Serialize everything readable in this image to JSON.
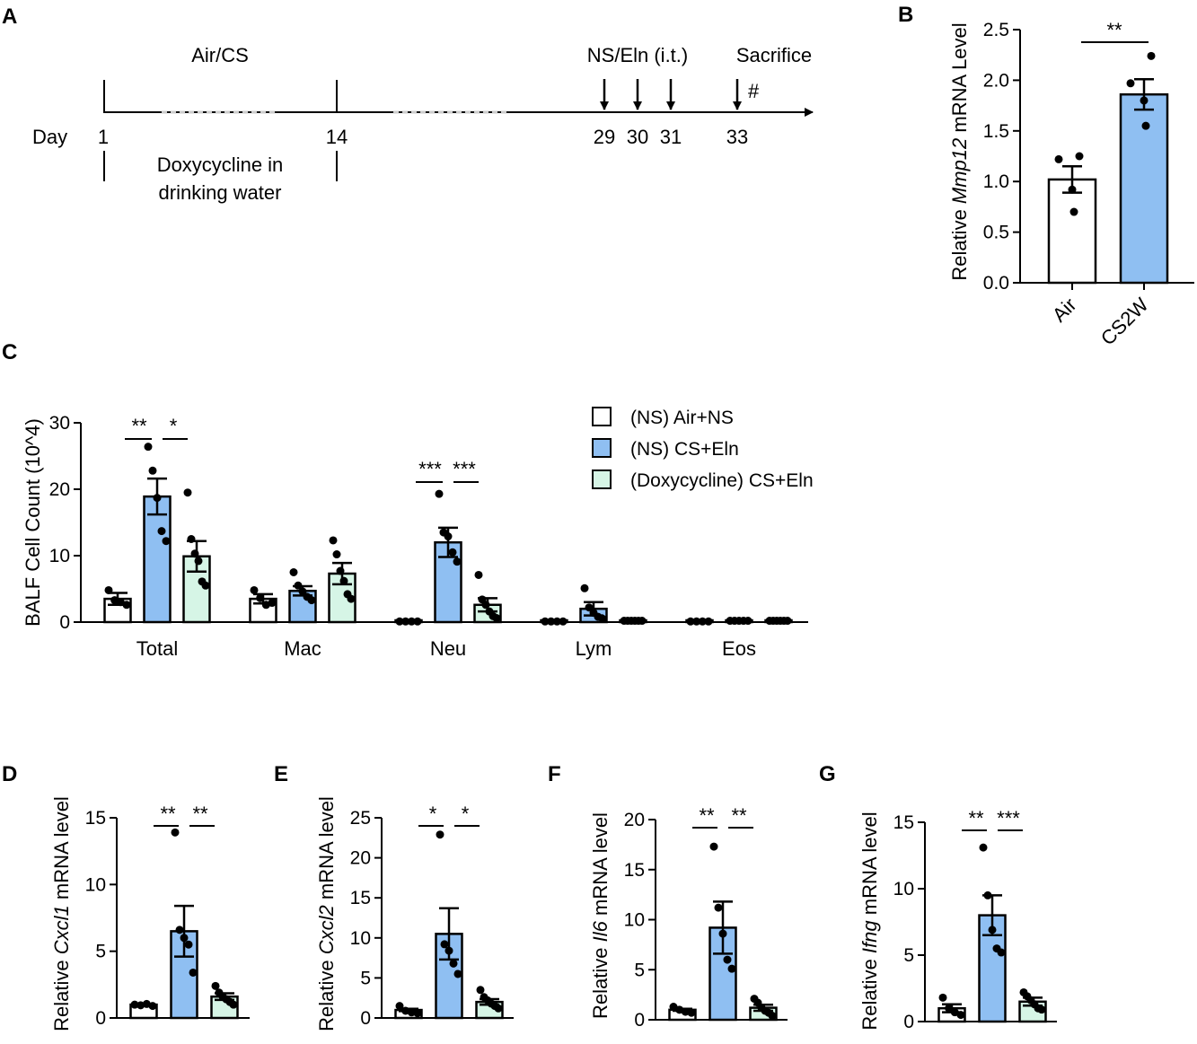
{
  "colors": {
    "air": "#ffffff",
    "cs": "#8fbff2",
    "doxy": "#d6f5e6",
    "stroke": "#000000"
  },
  "panel_a": {
    "label": "A",
    "day_label": "Day",
    "top_labels": [
      {
        "text": "Air/CS",
        "day": 7
      },
      {
        "text": "NS/Eln (i.t.)",
        "day": 30
      },
      {
        "text": "Sacrifice",
        "day": 36.5
      }
    ],
    "days": [
      "1",
      "14",
      "29",
      "30",
      "31",
      "33"
    ],
    "treatment_lines": [
      "Doxycycline in",
      "drinking water"
    ],
    "hash": "#"
  },
  "chart_data": [
    {
      "panel": "B",
      "type": "bar",
      "ylabel_parts": [
        "Relative ",
        "Mmp12",
        " mRNA Level"
      ],
      "categories": [
        "Air",
        "CS2W"
      ],
      "values": [
        1.02,
        1.86
      ],
      "errors": [
        0.13,
        0.15
      ],
      "points": [
        [
          1.25,
          1.22,
          0.92,
          0.7
        ],
        [
          2.24,
          1.97,
          1.8,
          1.55
        ]
      ],
      "ylim": [
        0,
        2.5
      ],
      "yticks": [
        "0.0",
        "0.5",
        "1.0",
        "1.5",
        "2.0",
        "2.5"
      ],
      "significance": [
        {
          "text": "**",
          "from": 0,
          "to": 1
        }
      ]
    },
    {
      "panel": "C",
      "type": "bar",
      "ylabel": "BALF Cell Count (10^4)",
      "categories": [
        "Total",
        "Mac",
        "Neu",
        "Lym",
        "Eos"
      ],
      "series": [
        {
          "name": "(NS) Air+NS",
          "values": [
            3.5,
            3.5,
            0.1,
            0.1,
            0.1
          ],
          "errors": [
            0.9,
            0.7,
            0,
            0,
            0
          ],
          "points": [
            [
              4.8,
              3.3,
              3.0,
              2.6
            ],
            [
              4.8,
              3.6,
              2.6,
              2.9
            ],
            [
              0.1,
              0.1,
              0.1,
              0.1
            ],
            [
              0.1,
              0.1,
              0.1,
              0.1
            ],
            [
              0.1,
              0.1,
              0.1,
              0.1
            ]
          ]
        },
        {
          "name": "(NS) CS+Eln",
          "values": [
            18.9,
            4.7,
            12.0,
            2.0,
            0.2
          ],
          "errors": [
            2.7,
            0.7,
            2.2,
            1.0,
            0
          ],
          "points": [
            [
              26.4,
              22.8,
              18.7,
              13.7,
              12.2
            ],
            [
              7.5,
              5.5,
              4.6,
              3.8,
              3.3
            ],
            [
              19.3,
              13.5,
              12.9,
              10.5,
              9.1
            ],
            [
              5.1,
              2.2,
              1.4,
              0.8,
              0.5
            ],
            [
              0.2,
              0.2,
              0.2,
              0.2,
              0.2
            ]
          ]
        },
        {
          "name": "(Doxycycline) CS+Eln",
          "values": [
            9.9,
            7.3,
            2.6,
            0.2,
            0.2
          ],
          "errors": [
            2.3,
            1.6,
            1.0,
            0,
            0
          ],
          "points": [
            [
              19.5,
              12.5,
              10.3,
              9.2,
              6.1,
              5.5
            ],
            [
              12.3,
              10.2,
              7.7,
              6.2,
              4.2,
              3.5
            ],
            [
              7.1,
              3.4,
              2.6,
              1.6,
              0.9,
              0.6
            ],
            [
              0.2,
              0.2,
              0.2,
              0.2,
              0.2,
              0.2
            ],
            [
              0.2,
              0.2,
              0.2,
              0.2,
              0.2,
              0.2
            ]
          ]
        }
      ],
      "ylim": [
        0,
        30
      ],
      "yticks": [
        "0",
        "10",
        "20",
        "30"
      ],
      "significance": [
        {
          "category": 0,
          "left": "**",
          "right": "*"
        },
        {
          "category": 2,
          "left": "***",
          "right": "***"
        }
      ]
    },
    {
      "panel": "D",
      "type": "bar",
      "ylabel_parts": [
        "Relative ",
        "Cxcl1",
        " mRNA level"
      ],
      "values": [
        1.0,
        6.5,
        1.6
      ],
      "errors": [
        0.05,
        1.9,
        0.25
      ],
      "points": [
        [
          1.0,
          0.95,
          1.05,
          0.9
        ],
        [
          13.9,
          6.6,
          6.0,
          5.5,
          3.4
        ],
        [
          2.4,
          1.9,
          1.6,
          1.4,
          1.2,
          1.0
        ]
      ],
      "ylim": [
        0,
        15
      ],
      "yticks": [
        "0",
        "5",
        "10",
        "15"
      ],
      "significance": [
        "**",
        "**"
      ]
    },
    {
      "panel": "E",
      "type": "bar",
      "ylabel_parts": [
        "Relative ",
        "Cxcl2",
        " mRNA level"
      ],
      "values": [
        1.0,
        10.5,
        2.0
      ],
      "errors": [
        0.15,
        3.2,
        0.35
      ],
      "points": [
        [
          1.5,
          0.9,
          0.7,
          0.6
        ],
        [
          22.9,
          9.2,
          8.4,
          6.8,
          5.5
        ],
        [
          3.5,
          2.6,
          2.2,
          1.8,
          1.5,
          1.2
        ]
      ],
      "ylim": [
        0,
        25
      ],
      "yticks": [
        "0",
        "5",
        "10",
        "15",
        "20",
        "25"
      ],
      "significance": [
        "*",
        "*"
      ]
    },
    {
      "panel": "F",
      "type": "bar",
      "ylabel_parts": [
        "Relative ",
        "Il6",
        " mRNA level"
      ],
      "values": [
        1.0,
        9.2,
        1.2
      ],
      "errors": [
        0.1,
        2.6,
        0.3
      ],
      "points": [
        [
          1.3,
          1.0,
          0.8,
          0.7
        ],
        [
          17.3,
          11.2,
          8.6,
          6.0,
          5.1
        ],
        [
          2.1,
          1.7,
          1.2,
          0.9,
          0.7,
          0.4
        ]
      ],
      "ylim": [
        0,
        20
      ],
      "yticks": [
        "0",
        "5",
        "10",
        "15",
        "20"
      ],
      "significance": [
        "**",
        "**"
      ]
    },
    {
      "panel": "G",
      "type": "bar",
      "ylabel_parts": [
        "Relative ",
        "Ifng",
        " mRNA level"
      ],
      "values": [
        1.0,
        8.0,
        1.5
      ],
      "errors": [
        0.3,
        1.5,
        0.3
      ],
      "points": [
        [
          1.8,
          1.0,
          0.7,
          0.5
        ],
        [
          13.1,
          9.5,
          6.9,
          5.5,
          5.2
        ],
        [
          2.2,
          1.9,
          1.6,
          1.3,
          1.0,
          0.9
        ]
      ],
      "ylim": [
        0,
        15
      ],
      "yticks": [
        "0",
        "5",
        "10",
        "15"
      ],
      "significance": [
        "**",
        "***"
      ]
    }
  ]
}
